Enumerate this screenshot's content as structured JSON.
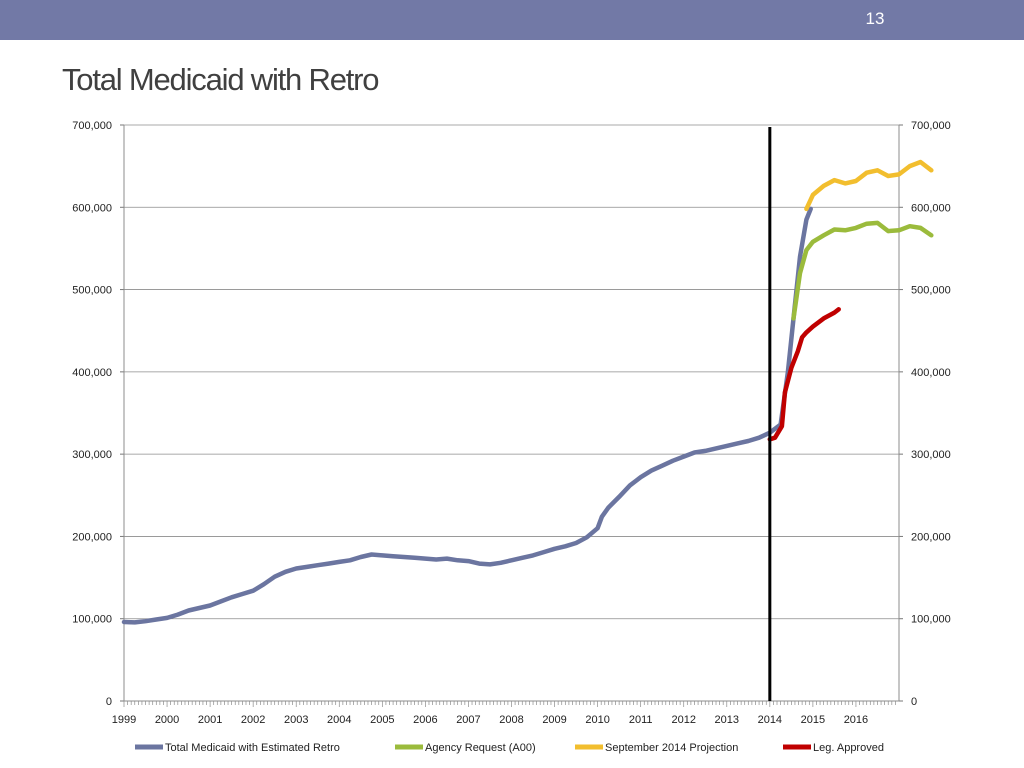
{
  "slide": {
    "number": "13",
    "title": "Total Medicaid with Retro"
  },
  "chart_data": {
    "type": "line",
    "title": "Total Medicaid with Retro",
    "x_tick_labels": [
      "1999",
      "2000",
      "2001",
      "2002",
      "2003",
      "2004",
      "2005",
      "2006",
      "2007",
      "2008",
      "2009",
      "2010",
      "2011",
      "2012",
      "2013",
      "2014",
      "2015",
      "2016"
    ],
    "y_tick_labels": [
      "0",
      "100,000",
      "200,000",
      "300,000",
      "400,000",
      "500,000",
      "600,000",
      "700,000"
    ],
    "xlim": [
      1999,
      2017
    ],
    "ylim": [
      0,
      700000
    ],
    "y_ticks": [
      0,
      100000,
      200000,
      300000,
      400000,
      500000,
      600000,
      700000
    ],
    "grid": true,
    "legend_position": "bottom",
    "vertical_marker_x": 2014.0,
    "series": [
      {
        "name": "Total Medicaid with Estimated Retro",
        "color": "#6b75a0",
        "points": [
          [
            1999,
            96000
          ],
          [
            1999.25,
            95500
          ],
          [
            1999.5,
            97000
          ],
          [
            1999.75,
            99000
          ],
          [
            2000,
            101000
          ],
          [
            2000.25,
            105000
          ],
          [
            2000.5,
            110000
          ],
          [
            2000.75,
            113000
          ],
          [
            2001,
            116000
          ],
          [
            2001.25,
            121000
          ],
          [
            2001.5,
            126000
          ],
          [
            2001.75,
            130000
          ],
          [
            2002,
            134000
          ],
          [
            2002.25,
            142000
          ],
          [
            2002.5,
            151000
          ],
          [
            2002.75,
            157000
          ],
          [
            2003,
            161000
          ],
          [
            2003.25,
            163000
          ],
          [
            2003.5,
            165000
          ],
          [
            2003.75,
            167000
          ],
          [
            2004,
            169000
          ],
          [
            2004.25,
            171000
          ],
          [
            2004.5,
            175000
          ],
          [
            2004.75,
            178000
          ],
          [
            2005,
            177000
          ],
          [
            2005.25,
            176000
          ],
          [
            2005.5,
            175000
          ],
          [
            2005.75,
            174000
          ],
          [
            2006,
            173000
          ],
          [
            2006.25,
            172000
          ],
          [
            2006.5,
            173000
          ],
          [
            2006.75,
            171000
          ],
          [
            2007,
            170000
          ],
          [
            2007.25,
            167000
          ],
          [
            2007.5,
            166000
          ],
          [
            2007.75,
            168000
          ],
          [
            2008,
            171000
          ],
          [
            2008.25,
            174000
          ],
          [
            2008.5,
            177000
          ],
          [
            2008.75,
            181000
          ],
          [
            2009,
            185000
          ],
          [
            2009.25,
            188000
          ],
          [
            2009.5,
            192000
          ],
          [
            2009.75,
            199000
          ],
          [
            2010,
            210000
          ],
          [
            2010.1,
            224000
          ],
          [
            2010.25,
            235000
          ],
          [
            2010.5,
            248000
          ],
          [
            2010.75,
            262000
          ],
          [
            2011,
            272000
          ],
          [
            2011.25,
            280000
          ],
          [
            2011.5,
            286000
          ],
          [
            2011.75,
            292000
          ],
          [
            2012,
            297000
          ],
          [
            2012.25,
            302000
          ],
          [
            2012.5,
            304000
          ],
          [
            2012.75,
            307000
          ],
          [
            2013,
            310000
          ],
          [
            2013.25,
            313000
          ],
          [
            2013.5,
            316000
          ],
          [
            2013.75,
            320000
          ],
          [
            2014,
            326000
          ],
          [
            2014.25,
            336000
          ],
          [
            2014.42,
            400000
          ],
          [
            2014.55,
            465000
          ],
          [
            2014.7,
            540000
          ],
          [
            2014.85,
            585000
          ],
          [
            2014.95,
            598000
          ]
        ]
      },
      {
        "name": "Agency Request (A00)",
        "color": "#9bbb3c",
        "points": [
          [
            2014.55,
            465000
          ],
          [
            2014.7,
            520000
          ],
          [
            2014.85,
            548000
          ],
          [
            2015,
            558000
          ],
          [
            2015.25,
            566000
          ],
          [
            2015.5,
            573000
          ],
          [
            2015.75,
            572000
          ],
          [
            2016,
            575000
          ],
          [
            2016.25,
            580000
          ],
          [
            2016.5,
            581000
          ],
          [
            2016.75,
            571000
          ],
          [
            2017,
            572000
          ],
          [
            2017.25,
            577000
          ],
          [
            2017.5,
            575000
          ],
          [
            2017.75,
            566000
          ]
        ]
      },
      {
        "name": "September 2014 Projection",
        "color": "#f2be2e",
        "points": [
          [
            2014.85,
            598000
          ],
          [
            2015,
            615000
          ],
          [
            2015.25,
            626000
          ],
          [
            2015.5,
            633000
          ],
          [
            2015.75,
            629000
          ],
          [
            2016,
            632000
          ],
          [
            2016.25,
            642000
          ],
          [
            2016.5,
            645000
          ],
          [
            2016.75,
            638000
          ],
          [
            2017,
            640000
          ],
          [
            2017.25,
            650000
          ],
          [
            2017.5,
            655000
          ],
          [
            2017.75,
            645000
          ]
        ]
      },
      {
        "name": "Leg. Approved",
        "color": "#c00000",
        "points": [
          [
            2014,
            318000
          ],
          [
            2014.12,
            320000
          ],
          [
            2014.28,
            334000
          ],
          [
            2014.35,
            375000
          ],
          [
            2014.5,
            405000
          ],
          [
            2014.65,
            425000
          ],
          [
            2014.75,
            442000
          ],
          [
            2014.85,
            448000
          ],
          [
            2015,
            455000
          ],
          [
            2015.25,
            465000
          ],
          [
            2015.5,
            472000
          ],
          [
            2015.6,
            476000
          ]
        ]
      }
    ]
  }
}
